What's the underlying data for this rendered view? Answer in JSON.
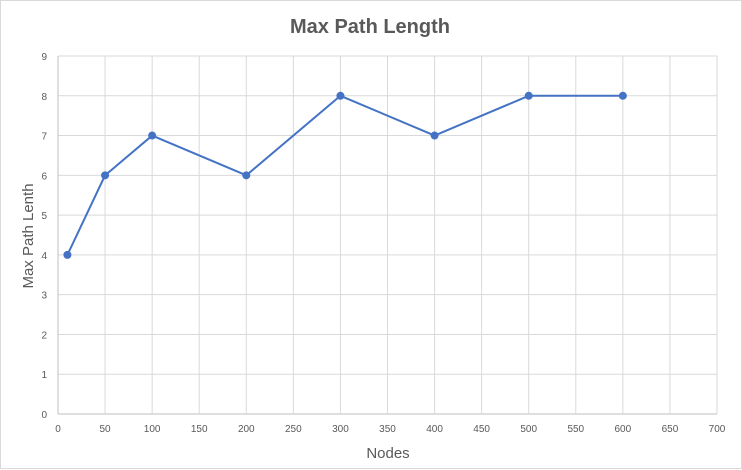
{
  "chart_data": {
    "type": "scatter",
    "title": "Max Path Length",
    "xlabel": "Nodes",
    "ylabel": "Max Path Lenth",
    "xlim": [
      0,
      700
    ],
    "ylim": [
      0,
      9
    ],
    "x_ticks": [
      0,
      50,
      100,
      150,
      200,
      250,
      300,
      350,
      400,
      450,
      500,
      550,
      600,
      650,
      700
    ],
    "y_ticks": [
      0,
      1,
      2,
      3,
      4,
      5,
      6,
      7,
      8,
      9
    ],
    "grid": true,
    "legend": "none",
    "series": [
      {
        "color": "#4472c4",
        "markers": true,
        "lines": true,
        "x": [
          10,
          50,
          100,
          200,
          300,
          400,
          500,
          600
        ],
        "y": [
          4,
          6,
          7,
          6,
          8,
          7,
          8,
          8
        ]
      }
    ]
  }
}
